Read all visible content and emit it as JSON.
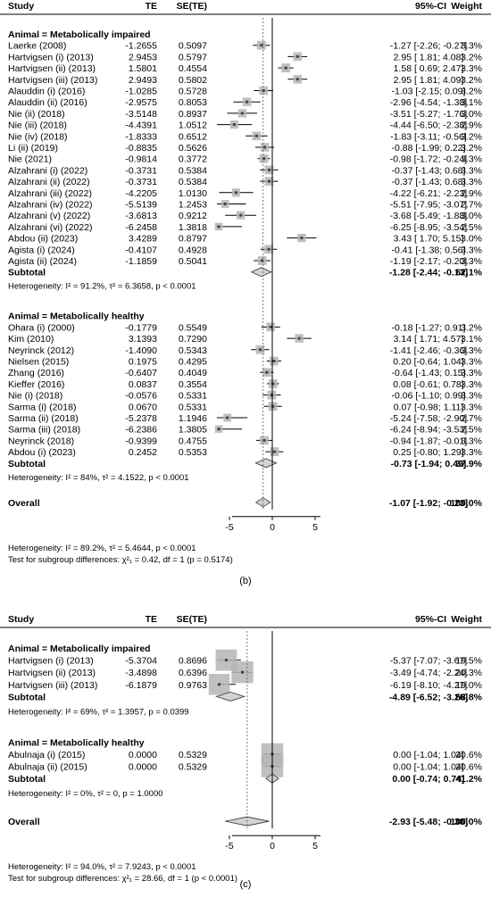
{
  "chart_data": [
    {
      "type": "forest",
      "columns": {
        "study": "Study",
        "te": "TE",
        "se": "SE(TE)",
        "ci": "95%-CI",
        "weight": "Weight"
      },
      "xaxis": {
        "range": [
          -5,
          5
        ],
        "ticks": [
          "-5",
          "0",
          "5"
        ],
        "tick_values": [
          -5,
          0,
          5
        ]
      },
      "overall_estimate": -1.07,
      "groups": [
        {
          "header": "Animal = Metabolically impaired",
          "studies": [
            {
              "name": "Laerke (2008)",
              "te": "-1.2655",
              "se": "0.5097",
              "est": -1.27,
              "lo": -2.26,
              "hi": -0.27,
              "ci": "-1.27  [-2.26; -0.27]",
              "weight": "3.3%",
              "w": 3.3
            },
            {
              "name": "Hartvigsen (i) (2013)",
              "te": "2.9453",
              "se": "0.5797",
              "est": 2.95,
              "lo": 1.81,
              "hi": 4.08,
              "ci": "2.95  [ 1.81;  4.08]",
              "weight": "3.2%",
              "w": 3.2
            },
            {
              "name": "Hartvigsen (ii) (2013)",
              "te": "1.5801",
              "se": "0.4554",
              "est": 1.58,
              "lo": 0.69,
              "hi": 2.47,
              "ci": "1.58  [ 0.69;  2.47]",
              "weight": "3.3%",
              "w": 3.3
            },
            {
              "name": "Hartvigsen (iii) (2013)",
              "te": "2.9493",
              "se": "0.5802",
              "est": 2.95,
              "lo": 1.81,
              "hi": 4.09,
              "ci": "2.95  [ 1.81;  4.09]",
              "weight": "3.2%",
              "w": 3.2
            },
            {
              "name": "Alauddin (i) (2016)",
              "te": "-1.0285",
              "se": "0.5728",
              "est": -1.03,
              "lo": -2.15,
              "hi": 0.09,
              "ci": "-1.03  [-2.15;  0.09]",
              "weight": "3.2%",
              "w": 3.2
            },
            {
              "name": "Alauddin (ii) (2016)",
              "te": "-2.9575",
              "se": "0.8053",
              "est": -2.96,
              "lo": -4.54,
              "hi": -1.38,
              "ci": "-2.96  [-4.54; -1.38]",
              "weight": "3.1%",
              "w": 3.1
            },
            {
              "name": "Nie (ii) (2018)",
              "te": "-3.5148",
              "se": "0.8937",
              "est": -3.51,
              "lo": -5.27,
              "hi": -1.76,
              "ci": "-3.51  [-5.27; -1.76]",
              "weight": "3.0%",
              "w": 3.0
            },
            {
              "name": "Nie (iii) (2018)",
              "te": "-4.4391",
              "se": "1.0512",
              "est": -4.44,
              "lo": -6.5,
              "hi": -2.38,
              "ci": "-4.44  [-6.50; -2.38]",
              "weight": "2.9%",
              "w": 2.9
            },
            {
              "name": "Nie (iv) (2018)",
              "te": "-1.8333",
              "se": "0.6512",
              "est": -1.83,
              "lo": -3.11,
              "hi": -0.56,
              "ci": "-1.83  [-3.11; -0.56]",
              "weight": "3.2%",
              "w": 3.2
            },
            {
              "name": "Li (ii) (2019)",
              "te": "-0.8835",
              "se": "0.5626",
              "est": -0.88,
              "lo": -1.99,
              "hi": 0.22,
              "ci": "-0.88  [-1.99;  0.22]",
              "weight": "3.2%",
              "w": 3.2
            },
            {
              "name": "Nie (2021)",
              "te": "-0.9814",
              "se": "0.3772",
              "est": -0.98,
              "lo": -1.72,
              "hi": -0.24,
              "ci": "-0.98  [-1.72; -0.24]",
              "weight": "3.3%",
              "w": 3.3
            },
            {
              "name": "Alzahrani (i) (2022)",
              "te": "-0.3731",
              "se": "0.5384",
              "est": -0.37,
              "lo": -1.43,
              "hi": 0.68,
              "ci": "-0.37  [-1.43;  0.68]",
              "weight": "3.3%",
              "w": 3.3
            },
            {
              "name": "Alzahrani (ii) (2022)",
              "te": "-0.3731",
              "se": "0.5384",
              "est": -0.37,
              "lo": -1.43,
              "hi": 0.68,
              "ci": "-0.37  [-1.43;  0.68]",
              "weight": "3.3%",
              "w": 3.3
            },
            {
              "name": "Alzahrani (iii) (2022)",
              "te": "-4.2205",
              "se": "1.0130",
              "est": -4.22,
              "lo": -6.21,
              "hi": -2.23,
              "ci": "-4.22  [-6.21; -2.23]",
              "weight": "2.9%",
              "w": 2.9
            },
            {
              "name": "Alzahrani (iv) (2022)",
              "te": "-5.5139",
              "se": "1.2453",
              "est": -5.51,
              "lo": -7.95,
              "hi": -3.07,
              "ci": "-5.51  [-7.95; -3.07]",
              "weight": "2.7%",
              "w": 2.7
            },
            {
              "name": "Alzahrani (v) (2022)",
              "te": "-3.6813",
              "se": "0.9212",
              "est": -3.68,
              "lo": -5.49,
              "hi": -1.88,
              "ci": "-3.68  [-5.49; -1.88]",
              "weight": "3.0%",
              "w": 3.0
            },
            {
              "name": "Alzahrani (vi) (2022)",
              "te": "-6.2458",
              "se": "1.3818",
              "est": -6.25,
              "lo": -8.95,
              "hi": -3.54,
              "ci": "-6.25  [-8.95; -3.54]",
              "weight": "2.5%",
              "w": 2.5
            },
            {
              "name": "Abdou (ii) (2023)",
              "te": "3.4289",
              "se": "0.8797",
              "est": 3.43,
              "lo": 1.7,
              "hi": 5.15,
              "ci": "3.43  [ 1.70;  5.15]",
              "weight": "3.0%",
              "w": 3.0
            },
            {
              "name": "Agista (i) (2024)",
              "te": "-0.4107",
              "se": "0.4928",
              "est": -0.41,
              "lo": -1.38,
              "hi": 0.56,
              "ci": "-0.41  [-1.38;  0.56]",
              "weight": "3.3%",
              "w": 3.3
            },
            {
              "name": "Agista (ii) (2024)",
              "te": "-1.1859",
              "se": "0.5041",
              "est": -1.19,
              "lo": -2.17,
              "hi": -0.2,
              "ci": "-1.19  [-2.17; -0.20]",
              "weight": "3.3%",
              "w": 3.3
            }
          ],
          "subtotal": {
            "label": "Subtotal",
            "est": -1.28,
            "lo": -2.44,
            "hi": -0.13,
            "ci": "-1.28  [-2.44; -0.13]",
            "weight": "62.1%"
          },
          "heterogeneity": "Heterogeneity: I² = 91.2%, τ² = 6.3658, p < 0.0001"
        },
        {
          "header": "Animal = Metabolically healthy",
          "studies": [
            {
              "name": "Ohara (i) (2000)",
              "te": "-0.1779",
              "se": "0.5549",
              "est": -0.18,
              "lo": -1.27,
              "hi": 0.91,
              "ci": "-0.18  [-1.27;  0.91]",
              "weight": "3.2%",
              "w": 3.2
            },
            {
              "name": "Kim (2010)",
              "te": "3.1393",
              "se": "0.7290",
              "est": 3.14,
              "lo": 1.71,
              "hi": 4.57,
              "ci": "3.14  [ 1.71;  4.57]",
              "weight": "3.1%",
              "w": 3.1
            },
            {
              "name": "Neyrinck (2012)",
              "te": "-1.4090",
              "se": "0.5343",
              "est": -1.41,
              "lo": -2.46,
              "hi": -0.36,
              "ci": "-1.41  [-2.46; -0.36]",
              "weight": "3.3%",
              "w": 3.3
            },
            {
              "name": "Nielsen (2015)",
              "te": "0.1975",
              "se": "0.4295",
              "est": 0.2,
              "lo": -0.64,
              "hi": 1.04,
              "ci": "0.20  [-0.64;  1.04]",
              "weight": "3.3%",
              "w": 3.3
            },
            {
              "name": "Zhang (2016)",
              "te": "-0.6407",
              "se": "0.4049",
              "est": -0.64,
              "lo": -1.43,
              "hi": 0.15,
              "ci": "-0.64  [-1.43;  0.15]",
              "weight": "3.3%",
              "w": 3.3
            },
            {
              "name": "Kieffer (2016)",
              "te": "0.0837",
              "se": "0.3554",
              "est": 0.08,
              "lo": -0.61,
              "hi": 0.78,
              "ci": "0.08  [-0.61;  0.78]",
              "weight": "3.3%",
              "w": 3.3
            },
            {
              "name": "Nie (i) (2018)",
              "te": "-0.0576",
              "se": "0.5331",
              "est": -0.06,
              "lo": -1.1,
              "hi": 0.99,
              "ci": "-0.06  [-1.10;  0.99]",
              "weight": "3.3%",
              "w": 3.3
            },
            {
              "name": "Sarma (i) (2018)",
              "te": "0.0670",
              "se": "0.5331",
              "est": 0.07,
              "lo": -0.98,
              "hi": 1.11,
              "ci": "0.07  [-0.98;  1.11]",
              "weight": "3.3%",
              "w": 3.3
            },
            {
              "name": "Sarma (ii) (2018)",
              "te": "-5.2378",
              "se": "1.1946",
              "est": -5.24,
              "lo": -7.58,
              "hi": -2.9,
              "ci": "-5.24  [-7.58; -2.90]",
              "weight": "2.7%",
              "w": 2.7
            },
            {
              "name": "Sarma (iii) (2018)",
              "te": "-6.2386",
              "se": "1.3805",
              "est": -6.24,
              "lo": -8.94,
              "hi": -3.53,
              "ci": "-6.24  [-8.94; -3.53]",
              "weight": "2.5%",
              "w": 2.5
            },
            {
              "name": "Neyrinck (2018)",
              "te": "-0.9399",
              "se": "0.4755",
              "est": -0.94,
              "lo": -1.87,
              "hi": -0.01,
              "ci": "-0.94  [-1.87; -0.01]",
              "weight": "3.3%",
              "w": 3.3
            },
            {
              "name": "Abdou (i) (2023)",
              "te": "0.2452",
              "se": "0.5353",
              "est": 0.25,
              "lo": -0.8,
              "hi": 1.29,
              "ci": "0.25  [-0.80;  1.29]",
              "weight": "3.3%",
              "w": 3.3
            }
          ],
          "subtotal": {
            "label": "Subtotal",
            "est": -0.73,
            "lo": -1.94,
            "hi": 0.49,
            "ci": "-0.73  [-1.94;  0.49]",
            "weight": "37.9%"
          },
          "heterogeneity": "Heterogeneity: I² = 84%, τ² = 4.1522, p < 0.0001"
        }
      ],
      "overall": {
        "label": "Overall",
        "est": -1.07,
        "lo": -1.92,
        "hi": -0.23,
        "ci": "-1.07  [-1.92; -0.23]",
        "weight": "100.0%"
      },
      "footer": [
        "Heterogeneity: I² = 89.2%, τ² = 5.4644, p < 0.0001",
        "Test for subgroup differences: χ²₁ = 0.42, df = 1 (p = 0.5174)"
      ],
      "caption": "(b)"
    },
    {
      "type": "forest",
      "columns": {
        "study": "Study",
        "te": "TE",
        "se": "SE(TE)",
        "ci": "95%-CI",
        "weight": "Weight"
      },
      "xaxis": {
        "range": [
          -5,
          5
        ],
        "ticks": [
          "-5",
          "0",
          "5"
        ],
        "tick_values": [
          -5,
          0,
          5
        ]
      },
      "overall_estimate": -2.93,
      "groups": [
        {
          "header": "Animal = Metabolically impaired",
          "studies": [
            {
              "name": "Hartvigsen (i) (2013)",
              "te": "-5.3704",
              "se": "0.8696",
              "est": -5.37,
              "lo": -7.07,
              "hi": -3.67,
              "ci": "-5.37  [-7.07; -3.67]",
              "weight": "19.5%",
              "w": 19.5
            },
            {
              "name": "Hartvigsen (ii) (2013)",
              "te": "-3.4898",
              "se": "0.6396",
              "est": -3.49,
              "lo": -4.74,
              "hi": -2.24,
              "ci": "-3.49  [-4.74; -2.24]",
              "weight": "20.3%",
              "w": 20.3
            },
            {
              "name": "Hartvigsen (iii) (2013)",
              "te": "-6.1879",
              "se": "0.9763",
              "est": -6.19,
              "lo": -8.1,
              "hi": -4.27,
              "ci": "-6.19  [-8.10; -4.27]",
              "weight": "19.0%",
              "w": 19.0
            }
          ],
          "subtotal": {
            "label": "Subtotal",
            "est": -4.89,
            "lo": -6.52,
            "hi": -3.26,
            "ci": "-4.89  [-6.52; -3.26]",
            "weight": "58.8%"
          },
          "heterogeneity": "Heterogeneity: I² = 69%, τ² = 1.3957, p = 0.0399"
        },
        {
          "header": "Animal = Metabolically healthy",
          "studies": [
            {
              "name": "Abulnaja (i) (2015)",
              "te": "0.0000",
              "se": "0.5329",
              "est": 0.0,
              "lo": -1.04,
              "hi": 1.04,
              "ci": "0.00  [-1.04;  1.04]",
              "weight": "20.6%",
              "w": 20.6
            },
            {
              "name": "Abulnaja (ii) (2015)",
              "te": "0.0000",
              "se": "0.5329",
              "est": 0.0,
              "lo": -1.04,
              "hi": 1.04,
              "ci": "0.00  [-1.04;  1.04]",
              "weight": "20.6%",
              "w": 20.6
            }
          ],
          "subtotal": {
            "label": "Subtotal",
            "est": 0.0,
            "lo": -0.74,
            "hi": 0.74,
            "ci": "0.00  [-0.74;  0.74]",
            "weight": "41.2%"
          },
          "heterogeneity": "Heterogeneity: I² = 0%, τ² = 0, p = 1.0000"
        }
      ],
      "overall": {
        "label": "Overall",
        "est": -2.93,
        "lo": -5.48,
        "hi": -0.38,
        "ci": "-2.93  [-5.48; -0.38]",
        "weight": "100.0%"
      },
      "footer": [
        "Heterogeneity: I² = 94.0%, τ² = 7.9243, p < 0.0001",
        "Test for subgroup differences: χ²₁ = 28.66, df = 1 (p < 0.0001)"
      ],
      "caption": "(c)"
    }
  ]
}
